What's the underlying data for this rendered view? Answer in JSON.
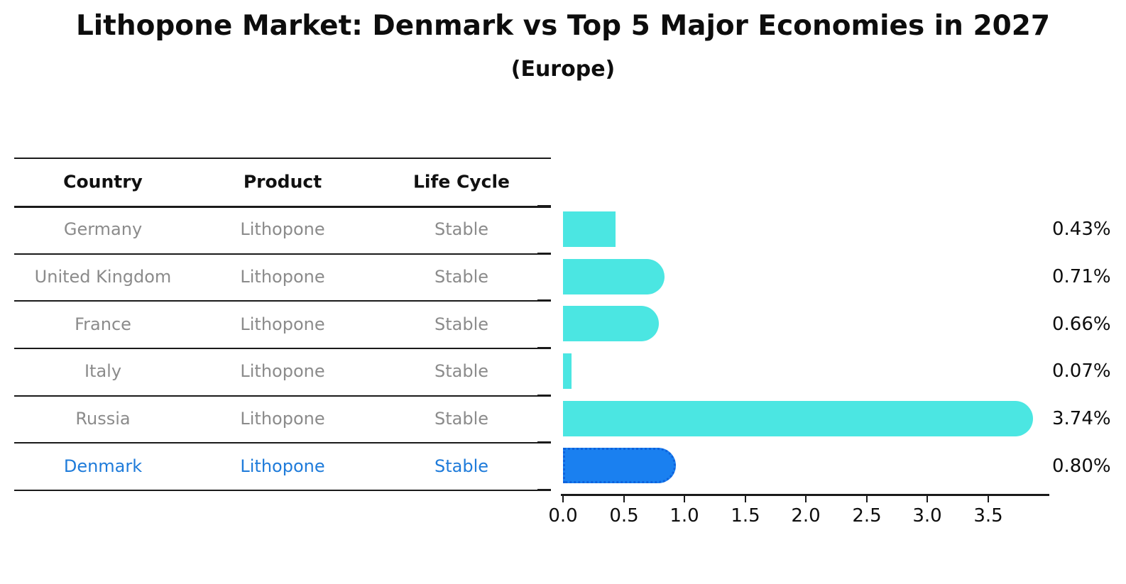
{
  "title": "Lithopone Market: Denmark vs Top 5 Major Economies in 2027",
  "subtitle": "(Europe)",
  "table": {
    "columns": [
      "Country",
      "Product",
      "Life Cycle"
    ],
    "rows": [
      {
        "country": "Germany",
        "product": "Lithopone",
        "life_cycle": "Stable",
        "highlighted": false
      },
      {
        "country": "United Kingdom",
        "product": "Lithopone",
        "life_cycle": "Stable",
        "highlighted": false
      },
      {
        "country": "France",
        "product": "Lithopone",
        "life_cycle": "Stable",
        "highlighted": false
      },
      {
        "country": "Italy",
        "product": "Lithopone",
        "life_cycle": "Stable",
        "highlighted": false
      },
      {
        "country": "Russia",
        "product": "Lithopone",
        "life_cycle": "Stable",
        "highlighted": false
      },
      {
        "country": "Denmark",
        "product": "Lithopone",
        "life_cycle": "Stable",
        "highlighted": true
      }
    ]
  },
  "chart_data": {
    "type": "bar",
    "orientation": "horizontal",
    "title": "Lithopone Market: Denmark vs Top 5 Major Economies in 2027 (Europe)",
    "categories": [
      "Germany",
      "United Kingdom",
      "France",
      "Italy",
      "Russia",
      "Denmark"
    ],
    "values": [
      0.43,
      0.71,
      0.66,
      0.07,
      3.74,
      0.8
    ],
    "value_labels": [
      "0.43%",
      "0.71%",
      "0.66%",
      "0.07%",
      "3.74%",
      "0.80%"
    ],
    "unit": "%",
    "xlim": [
      0,
      3.95
    ],
    "xtick_labels": [
      "0.0",
      "0.5",
      "1.0",
      "1.5",
      "2.0",
      "2.5",
      "3.0",
      "3.5"
    ],
    "xtick_values": [
      0.0,
      0.5,
      1.0,
      1.5,
      2.0,
      2.5,
      3.0,
      3.5
    ],
    "grid": false,
    "legend": false,
    "bar_caps": [
      "butt",
      "round",
      "round",
      "butt",
      "round",
      "round"
    ],
    "bar_color": "#4be6e2",
    "highlight_color": "#1a80f0",
    "highlight_border_color": "#0e62dd",
    "highlight_index": 5
  },
  "colors": {
    "background": "#ffffff",
    "text": "#0d0d0d",
    "table_text": "#8b8b8b",
    "table_highlight_text": "#1e7bda",
    "line": "#1a1a1a"
  }
}
